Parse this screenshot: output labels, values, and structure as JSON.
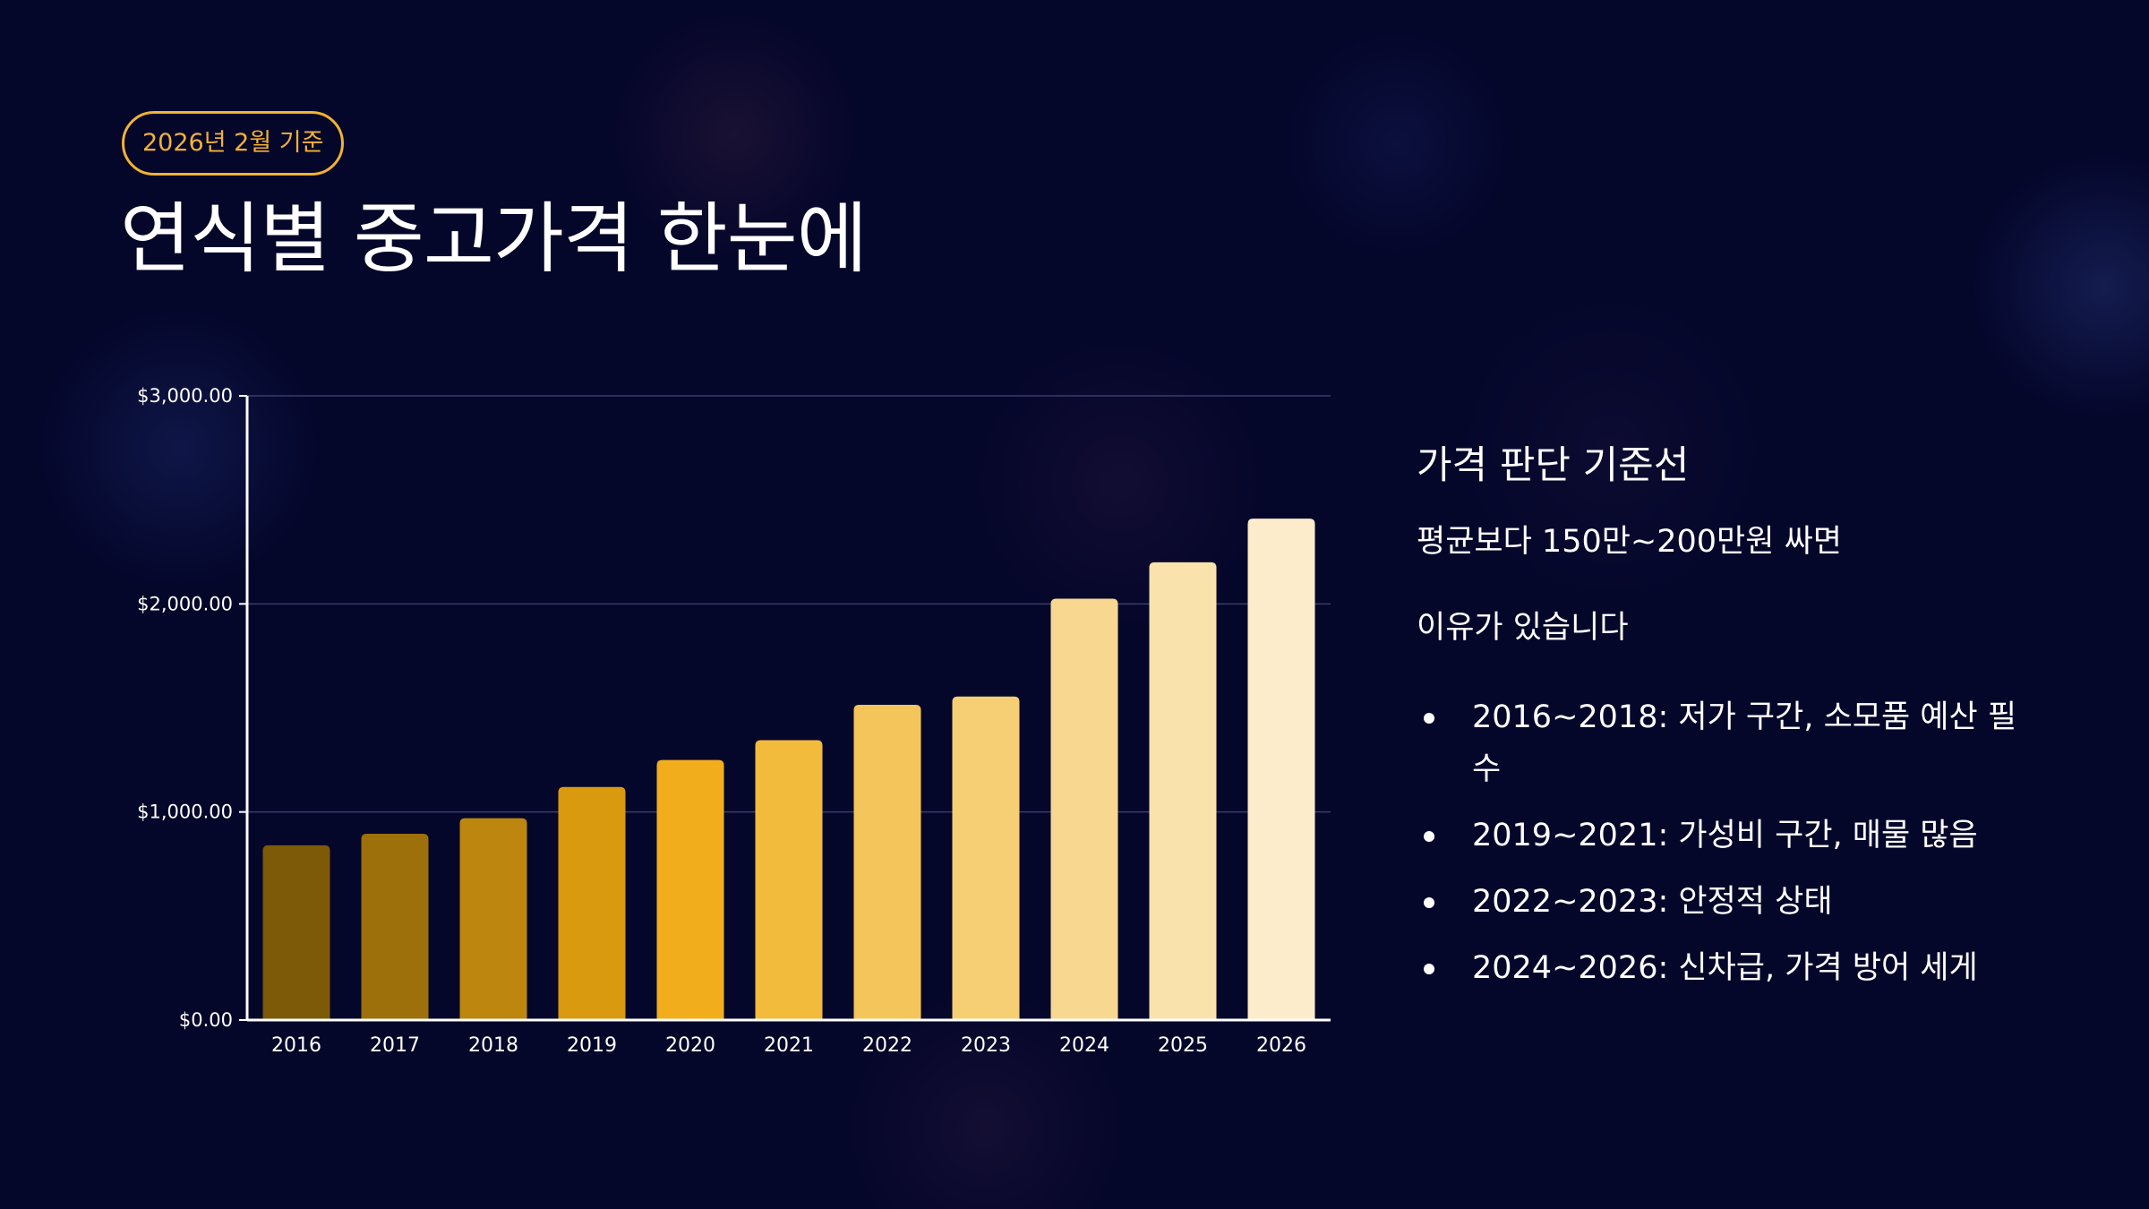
{
  "badge": "2026년 2월 기준",
  "title": "연식별 중고가격 한눈에",
  "side_panel": {
    "heading": "가격 판단 기준선",
    "line1": "평균보다 150만~200만원 싸면",
    "line2": "이유가 있습니다",
    "bullets": [
      "2016~2018: 저가 구간, 소모품 예산 필수",
      "2019~2021: 가성비 구간, 매물 많음",
      "2022~2023: 안정적 상태",
      "2024~2026: 신차급, 가격 방어 세게"
    ]
  },
  "chart_data": {
    "type": "bar",
    "categories": [
      "2016",
      "2017",
      "2018",
      "2019",
      "2020",
      "2021",
      "2022",
      "2023",
      "2024",
      "2025",
      "2026"
    ],
    "values": [
      840,
      895,
      970,
      1120,
      1250,
      1345,
      1515,
      1555,
      2025,
      2200,
      2410
    ],
    "colors": [
      "#7d5a08",
      "#9e700b",
      "#bd860e",
      "#d99a10",
      "#f2ad1d",
      "#f3bb3b",
      "#f4c55a",
      "#f6cf75",
      "#f8d890",
      "#fae2ad",
      "#fdeccb"
    ],
    "ylim": [
      0,
      3000
    ],
    "yticks": [
      0,
      1000,
      2000,
      3000
    ],
    "ytick_labels": [
      "$0.00",
      "$1,000.00",
      "$2,000.00",
      "$3,000.00"
    ],
    "grid": true,
    "legend": "none"
  }
}
